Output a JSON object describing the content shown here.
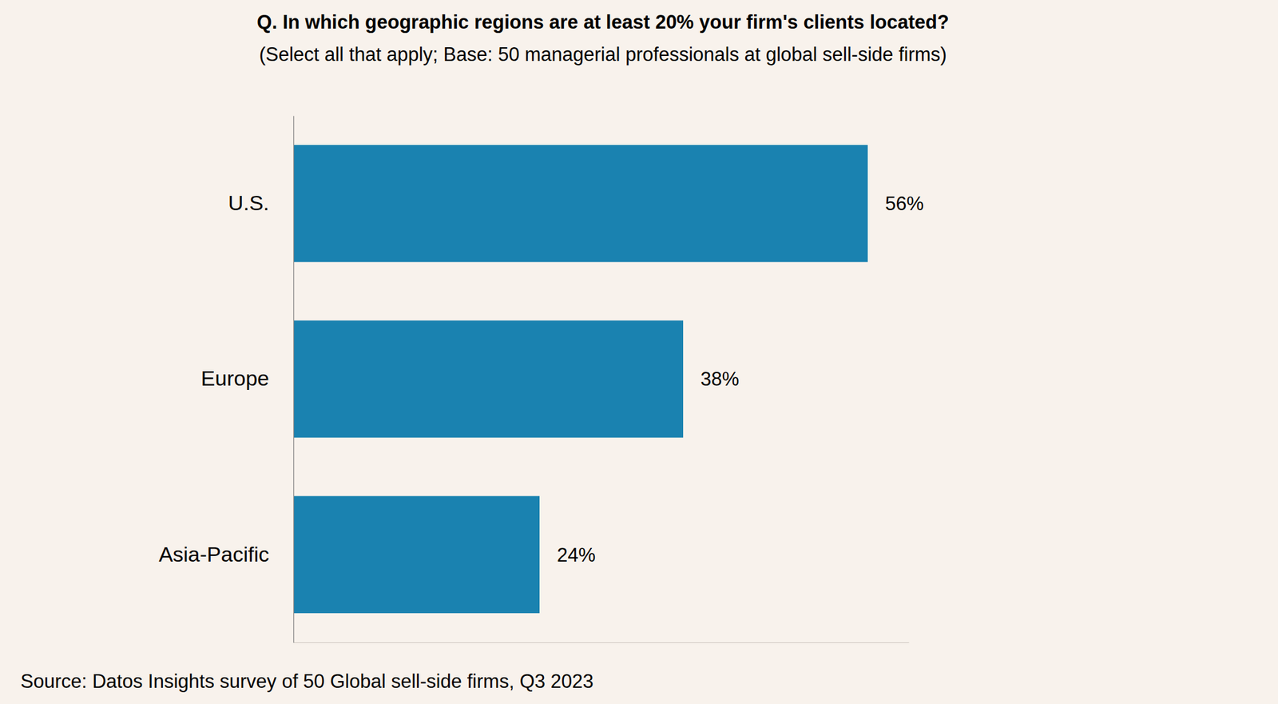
{
  "chart_data": {
    "type": "bar",
    "title": "Q. In which geographic regions are at least 20% your firm's clients located?",
    "subtitle": "(Select all that apply; Base: 50 managerial professionals at global sell-side firms)",
    "source": "Source: Datos Insights survey of 50 Global sell-side firms, Q3 2023",
    "categories": [
      "U.S.",
      "Europe",
      "Asia-Pacific"
    ],
    "values": [
      56,
      38,
      24
    ],
    "value_labels": [
      "56%",
      "38%",
      "24%"
    ],
    "color": "#1a82b0",
    "orientation": "horizontal",
    "data_labels": true,
    "tick_labels": "y",
    "xlim": [
      0,
      60
    ]
  }
}
